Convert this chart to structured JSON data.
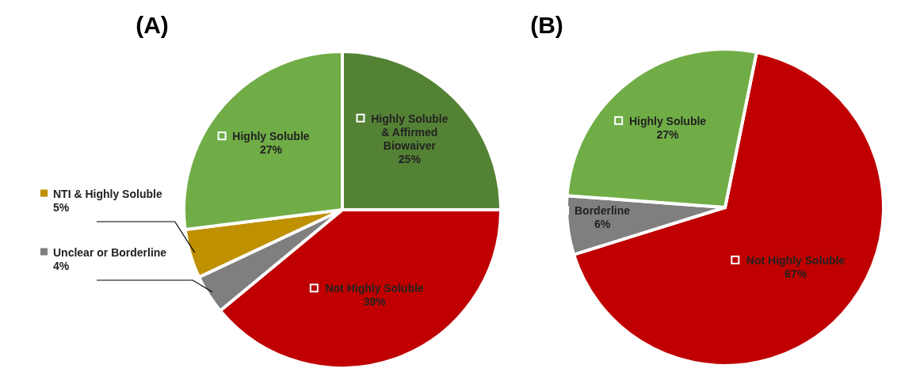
{
  "chart_data": [
    {
      "type": "pie",
      "title": "(A)",
      "categories": [
        "Highly Soluble & Affirmed Biowaiver",
        "Not Highly Soluble",
        "Unclear or Borderline",
        "NTI & Highly Soluble",
        "Highly Soluble"
      ],
      "values": [
        25,
        39,
        4,
        5,
        27
      ],
      "value_labels": [
        "25%",
        "39%",
        "4%",
        "5%",
        "27%"
      ],
      "colors": [
        "#548235",
        "#c00000",
        "#7f7f7f",
        "#bf9000",
        "#70ad47"
      ],
      "legend": "left"
    },
    {
      "type": "pie",
      "title": "(B)",
      "categories": [
        "Not Highly Soluble",
        "Borderline",
        "Highly Soluble"
      ],
      "values": [
        67,
        6,
        27
      ],
      "value_labels": [
        "67%",
        "6%",
        "27%"
      ],
      "colors": [
        "#c00000",
        "#7f7f7f",
        "#70ad47"
      ]
    }
  ]
}
